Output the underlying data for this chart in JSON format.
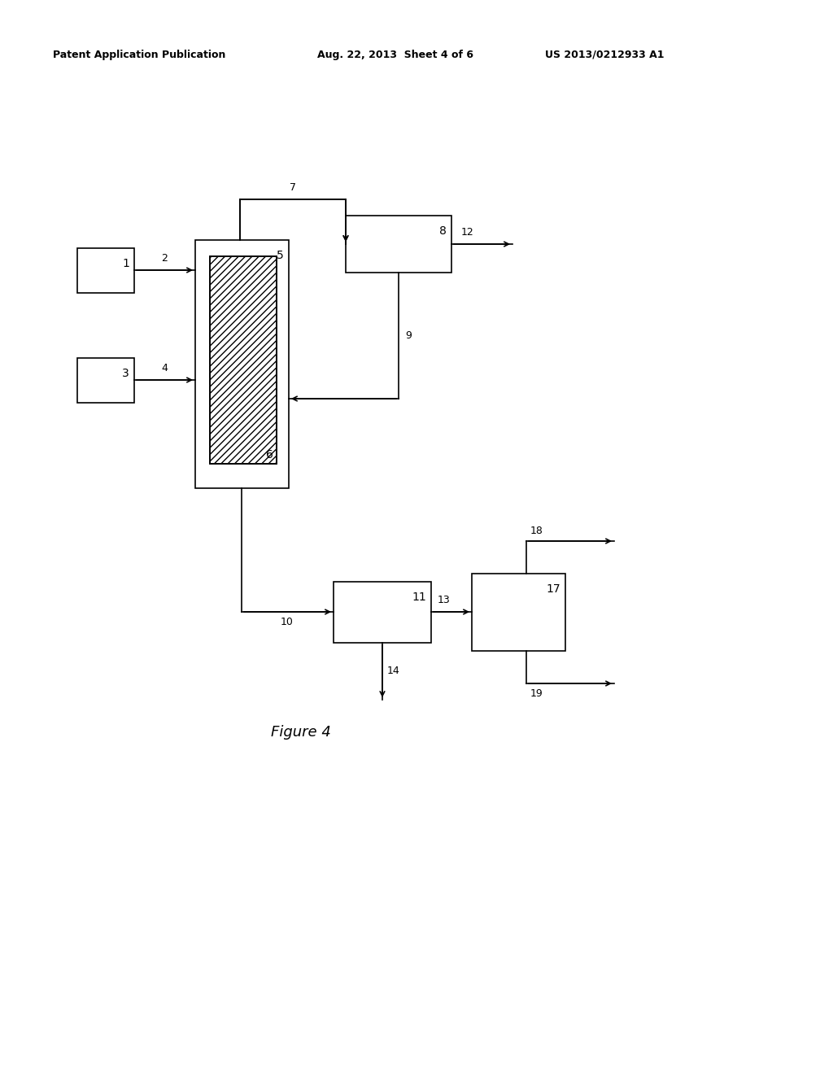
{
  "header_left": "Patent Application Publication",
  "header_mid": "Aug. 22, 2013  Sheet 4 of 6",
  "header_right": "US 2013/0212933 A1",
  "figure_label": "Figure 4",
  "background_color": "#ffffff",
  "line_color": "#000000",
  "arrow_color": "#000000",
  "text_color": "#000000",
  "font_size_box_label": 10,
  "font_size_conn_label": 9,
  "font_size_header": 9,
  "font_size_figure": 13,
  "lw": 1.2
}
